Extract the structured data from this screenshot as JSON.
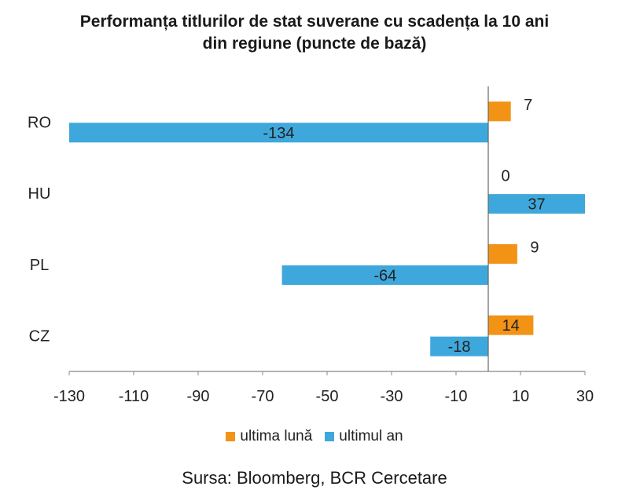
{
  "title_line1": "Performanța titlurilor de stat suverane cu scadența la 10 ani",
  "title_line2": "din regiune (puncte de bază)",
  "source": "Sursa: Bloomberg, BCR Cercetare",
  "colors": {
    "luna": "#F39316",
    "an": "#3EA8DC"
  },
  "chart_data": {
    "type": "bar",
    "orientation": "horizontal",
    "categories": [
      "RO",
      "HU",
      "PL",
      "CZ"
    ],
    "series": [
      {
        "name": "ultima lună",
        "values": [
          7,
          0,
          9,
          14
        ]
      },
      {
        "name": "ultimul an",
        "values": [
          -134,
          37,
          -64,
          -18
        ]
      }
    ],
    "xlim": [
      -130,
      30
    ],
    "xticks": [
      -130,
      -110,
      -90,
      -70,
      -50,
      -30,
      -10,
      10,
      30
    ],
    "legend_position": "bottom",
    "grid": false
  }
}
